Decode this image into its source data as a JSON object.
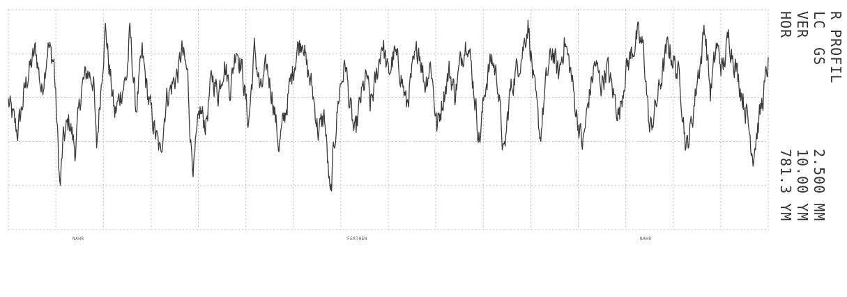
{
  "chart_data": {
    "type": "line",
    "title": "",
    "xlabel": "",
    "ylabel": "",
    "xlim": [
      0,
      2.5
    ],
    "ylim": [
      -15,
      10
    ],
    "grid": true,
    "series_color": "#3a3a3a",
    "grid_color": "#bfbfbf",
    "profile_points": [
      [
        0.0,
        -0.5
      ],
      [
        0.03,
        -4.0
      ],
      [
        0.06,
        2.0
      ],
      [
        0.09,
        5.5
      ],
      [
        0.11,
        0.5
      ],
      [
        0.13,
        6.0
      ],
      [
        0.15,
        4.0
      ],
      [
        0.16,
        -3.0
      ],
      [
        0.17,
        -10.5
      ],
      [
        0.18,
        -5.0
      ],
      [
        0.2,
        -2.5
      ],
      [
        0.22,
        -6.0
      ],
      [
        0.24,
        1.0
      ],
      [
        0.26,
        3.0
      ],
      [
        0.28,
        2.0
      ],
      [
        0.29,
        -6.0
      ],
      [
        0.31,
        4.0
      ],
      [
        0.32,
        8.0
      ],
      [
        0.33,
        4.0
      ],
      [
        0.35,
        -2.0
      ],
      [
        0.37,
        0.5
      ],
      [
        0.39,
        2.5
      ],
      [
        0.4,
        7.5
      ],
      [
        0.42,
        -1.5
      ],
      [
        0.44,
        5.0
      ],
      [
        0.46,
        0.0
      ],
      [
        0.48,
        -3.5
      ],
      [
        0.5,
        -6.5
      ],
      [
        0.52,
        0.0
      ],
      [
        0.54,
        1.5
      ],
      [
        0.56,
        3.0
      ],
      [
        0.57,
        5.5
      ],
      [
        0.59,
        2.5
      ],
      [
        0.6,
        -5.0
      ],
      [
        0.61,
        -8.0
      ],
      [
        0.63,
        -1.5
      ],
      [
        0.65,
        -3.0
      ],
      [
        0.67,
        2.5
      ],
      [
        0.69,
        0.5
      ],
      [
        0.71,
        4.0
      ],
      [
        0.73,
        1.0
      ],
      [
        0.75,
        6.0
      ],
      [
        0.77,
        3.0
      ],
      [
        0.79,
        -3.0
      ],
      [
        0.81,
        5.5
      ],
      [
        0.83,
        0.5
      ],
      [
        0.85,
        3.5
      ],
      [
        0.87,
        0.0
      ],
      [
        0.89,
        -5.5
      ],
      [
        0.91,
        -2.0
      ],
      [
        0.93,
        2.0
      ],
      [
        0.95,
        5.5
      ],
      [
        0.97,
        7.0
      ],
      [
        0.98,
        3.5
      ],
      [
        1.0,
        1.0
      ],
      [
        1.02,
        -4.0
      ],
      [
        1.04,
        -2.0
      ],
      [
        1.06,
        -12.0
      ],
      [
        1.07,
        -6.0
      ],
      [
        1.09,
        1.0
      ],
      [
        1.11,
        4.0
      ],
      [
        1.12,
        0.0
      ],
      [
        1.14,
        -4.5
      ],
      [
        1.16,
        0.0
      ],
      [
        1.18,
        2.5
      ],
      [
        1.19,
        -1.0
      ],
      [
        1.21,
        2.0
      ],
      [
        1.23,
        6.5
      ],
      [
        1.25,
        2.5
      ],
      [
        1.27,
        5.0
      ],
      [
        1.29,
        3.0
      ],
      [
        1.31,
        -1.0
      ],
      [
        1.33,
        3.0
      ],
      [
        1.35,
        6.0
      ],
      [
        1.37,
        1.5
      ],
      [
        1.39,
        4.0
      ],
      [
        1.41,
        -3.5
      ],
      [
        1.43,
        0.0
      ],
      [
        1.45,
        3.0
      ],
      [
        1.47,
        0.5
      ],
      [
        1.49,
        4.5
      ],
      [
        1.51,
        7.0
      ],
      [
        1.53,
        1.5
      ],
      [
        1.55,
        -5.0
      ],
      [
        1.57,
        1.5
      ],
      [
        1.59,
        4.5
      ],
      [
        1.61,
        2.0
      ],
      [
        1.63,
        -7.0
      ],
      [
        1.65,
        0.5
      ],
      [
        1.67,
        3.0
      ],
      [
        1.69,
        5.0
      ],
      [
        1.71,
        8.5
      ],
      [
        1.73,
        1.0
      ],
      [
        1.75,
        -4.5
      ],
      [
        1.77,
        2.0
      ],
      [
        1.79,
        5.5
      ],
      [
        1.81,
        2.5
      ],
      [
        1.83,
        6.5
      ],
      [
        1.85,
        3.0
      ],
      [
        1.87,
        -2.0
      ],
      [
        1.89,
        -5.5
      ],
      [
        1.91,
        0.0
      ],
      [
        1.93,
        4.0
      ],
      [
        1.95,
        1.5
      ],
      [
        1.97,
        3.5
      ],
      [
        1.99,
        0.5
      ],
      [
        2.01,
        -2.0
      ],
      [
        2.03,
        3.0
      ],
      [
        2.05,
        5.0
      ],
      [
        2.07,
        7.0
      ],
      [
        2.09,
        5.5
      ],
      [
        2.11,
        -4.0
      ],
      [
        2.13,
        -1.0
      ],
      [
        2.15,
        2.5
      ],
      [
        2.17,
        6.0
      ],
      [
        2.19,
        4.0
      ],
      [
        2.21,
        2.0
      ],
      [
        2.23,
        -6.0
      ],
      [
        2.25,
        -2.5
      ],
      [
        2.27,
        3.0
      ],
      [
        2.28,
        4.5
      ],
      [
        2.29,
        8.5
      ],
      [
        2.31,
        0.5
      ],
      [
        2.33,
        6.0
      ],
      [
        2.35,
        3.0
      ],
      [
        2.37,
        7.0
      ],
      [
        2.39,
        4.0
      ],
      [
        2.41,
        1.0
      ],
      [
        2.43,
        -2.0
      ],
      [
        2.45,
        -6.5
      ],
      [
        2.47,
        -2.5
      ],
      [
        2.49,
        1.5
      ],
      [
        2.5,
        4.0
      ]
    ],
    "noise_amplitude": 1.3,
    "samples": 1300
  },
  "bottom_labels": {
    "left": "NAHR",
    "middle": "FERTHEN",
    "right": "NAHR"
  },
  "header_lines": [
    "R PROFIL",
    "LC  GS",
    "VER",
    "HOR"
  ],
  "value_lines": [
    "2.500 MM",
    "10.00 YM",
    "781.3 YM"
  ]
}
